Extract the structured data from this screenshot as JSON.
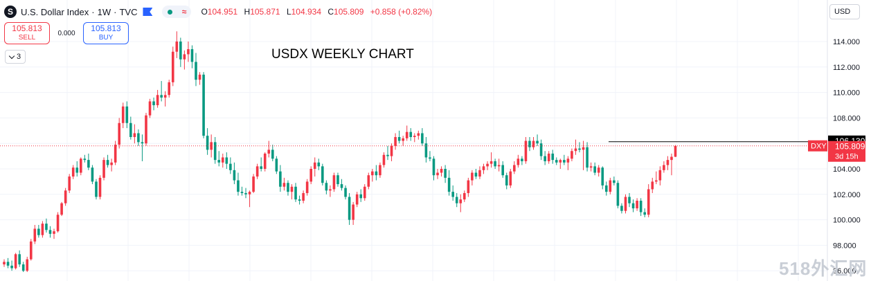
{
  "header": {
    "symbol_icon": "S",
    "symbol": "U.S. Dollar Index",
    "interval": "1W",
    "source": "TVC",
    "sep": "·",
    "ohlc": {
      "o_label": "O",
      "o": "104.951",
      "h_label": "H",
      "h": "105.871",
      "l_label": "L",
      "l": "104.934",
      "c_label": "C",
      "c": "105.809",
      "change": "+0.858 (+0.82%)"
    }
  },
  "trade": {
    "sell_price": "105.813",
    "sell_label": "SELL",
    "spread": "0.000",
    "buy_price": "105.813",
    "buy_label": "BUY"
  },
  "indicators_count": "3",
  "currency": "USD",
  "annotation": "USDX WEEKLY CHART",
  "watermark": "518外汇网",
  "colors": {
    "up": "#f23645",
    "down": "#089981",
    "accent": "#2962ff",
    "text": "#131722",
    "grid": "#f0f3fa"
  },
  "chart_data": {
    "type": "candlestick",
    "y_range": [
      96.6,
      115.9
    ],
    "y_ticks": [
      "114.000",
      "112.000",
      "110.000",
      "108.000",
      "106.000",
      "104.000",
      "102.000",
      "100.000",
      "98.000",
      "96.000"
    ],
    "last_price_label": "105.809",
    "last_price": 105.809,
    "countdown": "3d 15h",
    "ticker_tag": "DXY",
    "hline_label": "106.130",
    "hline_value": 106.13,
    "ohlc": [
      [
        96.5,
        96.9,
        96.3,
        96.7
      ],
      [
        96.7,
        97.0,
        96.2,
        96.4
      ],
      [
        96.4,
        96.8,
        96.0,
        96.2
      ],
      [
        96.2,
        97.4,
        96.1,
        97.3
      ],
      [
        97.3,
        97.6,
        96.3,
        96.5
      ],
      [
        96.5,
        96.7,
        95.9,
        96.0
      ],
      [
        96.0,
        97.1,
        95.9,
        96.9
      ],
      [
        96.9,
        98.5,
        96.8,
        98.3
      ],
      [
        98.3,
        99.6,
        98.1,
        99.3
      ],
      [
        99.3,
        99.6,
        98.6,
        98.8
      ],
      [
        98.8,
        99.9,
        98.6,
        99.7
      ],
      [
        99.7,
        100.1,
        99.0,
        99.2
      ],
      [
        99.2,
        99.5,
        98.6,
        98.9
      ],
      [
        98.9,
        99.3,
        98.5,
        99.1
      ],
      [
        99.1,
        100.6,
        99.0,
        100.4
      ],
      [
        100.4,
        101.4,
        100.3,
        101.3
      ],
      [
        101.3,
        102.5,
        101.1,
        102.3
      ],
      [
        102.3,
        103.6,
        102.1,
        103.4
      ],
      [
        103.4,
        104.3,
        103.2,
        104.1
      ],
      [
        104.1,
        104.6,
        103.4,
        103.7
      ],
      [
        103.7,
        104.9,
        103.5,
        104.8
      ],
      [
        104.8,
        105.1,
        104.5,
        104.7
      ],
      [
        104.7,
        105.2,
        103.9,
        104.1
      ],
      [
        104.1,
        104.3,
        102.8,
        103.0
      ],
      [
        103.0,
        103.2,
        101.6,
        101.8
      ],
      [
        101.8,
        103.5,
        101.6,
        103.3
      ],
      [
        103.3,
        104.9,
        103.1,
        104.7
      ],
      [
        104.7,
        105.1,
        104.1,
        104.3
      ],
      [
        104.3,
        104.8,
        103.8,
        104.5
      ],
      [
        104.5,
        106.2,
        104.3,
        105.9
      ],
      [
        105.9,
        108.0,
        105.6,
        107.6
      ],
      [
        107.6,
        109.2,
        107.2,
        108.9
      ],
      [
        108.9,
        109.3,
        107.2,
        107.6
      ],
      [
        107.6,
        108.1,
        106.3,
        106.5
      ],
      [
        106.5,
        107.5,
        106.0,
        106.8
      ],
      [
        106.8,
        107.1,
        105.8,
        106.1
      ],
      [
        106.1,
        106.7,
        104.6,
        106.0
      ],
      [
        106.0,
        108.4,
        105.8,
        108.2
      ],
      [
        108.2,
        109.5,
        108.0,
        109.3
      ],
      [
        109.3,
        109.6,
        108.6,
        109.0
      ],
      [
        109.0,
        110.2,
        108.8,
        109.8
      ],
      [
        109.8,
        110.9,
        109.3,
        109.6
      ],
      [
        109.6,
        110.1,
        108.9,
        109.8
      ],
      [
        109.8,
        111.0,
        109.6,
        110.8
      ],
      [
        110.8,
        113.6,
        110.5,
        113.2
      ],
      [
        113.2,
        114.8,
        112.7,
        114.0
      ],
      [
        114.0,
        114.3,
        112.0,
        112.6
      ],
      [
        112.6,
        113.3,
        111.8,
        113.0
      ],
      [
        113.0,
        114.0,
        112.4,
        113.4
      ],
      [
        113.4,
        113.7,
        111.9,
        112.4
      ],
      [
        112.4,
        113.1,
        110.5,
        111.0
      ],
      [
        111.0,
        111.6,
        110.6,
        111.4
      ],
      [
        111.4,
        111.6,
        106.4,
        106.6
      ],
      [
        106.6,
        107.2,
        105.1,
        105.5
      ],
      [
        105.5,
        106.7,
        104.9,
        106.1
      ],
      [
        106.1,
        106.5,
        104.4,
        104.7
      ],
      [
        104.7,
        105.4,
        104.2,
        104.5
      ],
      [
        104.5,
        105.2,
        104.1,
        104.9
      ],
      [
        104.9,
        105.3,
        104.0,
        104.4
      ],
      [
        104.4,
        104.9,
        103.6,
        103.9
      ],
      [
        103.9,
        104.5,
        102.8,
        103.1
      ],
      [
        103.1,
        103.7,
        101.9,
        102.2
      ],
      [
        102.2,
        102.6,
        101.9,
        102.1
      ],
      [
        102.1,
        102.5,
        101.7,
        102.0
      ],
      [
        102.0,
        102.3,
        101.0,
        102.2
      ],
      [
        102.2,
        103.6,
        102.1,
        103.4
      ],
      [
        103.4,
        104.4,
        103.2,
        104.2
      ],
      [
        104.2,
        104.9,
        103.8,
        104.0
      ],
      [
        104.0,
        105.3,
        103.8,
        105.2
      ],
      [
        105.2,
        106.2,
        104.9,
        105.5
      ],
      [
        105.5,
        105.9,
        104.6,
        104.8
      ],
      [
        104.8,
        105.0,
        103.6,
        103.8
      ],
      [
        103.8,
        104.3,
        102.2,
        102.6
      ],
      [
        102.6,
        103.3,
        102.3,
        102.9
      ],
      [
        102.9,
        103.1,
        101.9,
        102.2
      ],
      [
        102.2,
        102.8,
        101.6,
        102.6
      ],
      [
        102.6,
        102.9,
        101.4,
        101.6
      ],
      [
        101.6,
        101.9,
        101.2,
        101.5
      ],
      [
        101.5,
        102.3,
        101.3,
        102.1
      ],
      [
        102.1,
        103.2,
        101.9,
        103.0
      ],
      [
        103.0,
        104.2,
        102.8,
        104.0
      ],
      [
        104.0,
        104.9,
        103.4,
        104.5
      ],
      [
        104.5,
        104.8,
        103.9,
        104.2
      ],
      [
        104.2,
        104.4,
        102.7,
        102.9
      ],
      [
        102.9,
        103.1,
        102.0,
        102.3
      ],
      [
        102.3,
        102.7,
        101.8,
        102.4
      ],
      [
        102.4,
        103.7,
        102.2,
        103.5
      ],
      [
        103.5,
        103.7,
        102.6,
        102.8
      ],
      [
        102.8,
        103.2,
        102.3,
        102.5
      ],
      [
        102.5,
        102.7,
        101.6,
        101.8
      ],
      [
        101.8,
        102.1,
        99.6,
        100.0
      ],
      [
        100.0,
        101.4,
        99.6,
        101.2
      ],
      [
        101.2,
        102.2,
        101.0,
        102.0
      ],
      [
        102.0,
        102.4,
        101.4,
        101.7
      ],
      [
        101.7,
        102.8,
        101.5,
        102.6
      ],
      [
        102.6,
        103.7,
        102.4,
        103.5
      ],
      [
        103.5,
        104.0,
        103.0,
        103.8
      ],
      [
        103.8,
        104.3,
        103.1,
        103.5
      ],
      [
        103.5,
        104.5,
        103.3,
        104.3
      ],
      [
        104.3,
        105.3,
        104.1,
        105.1
      ],
      [
        105.1,
        105.8,
        104.7,
        105.0
      ],
      [
        105.0,
        106.0,
        104.6,
        105.8
      ],
      [
        105.8,
        106.8,
        105.5,
        106.5
      ],
      [
        106.5,
        107.0,
        106.0,
        106.2
      ],
      [
        106.2,
        106.6,
        105.8,
        106.4
      ],
      [
        106.4,
        107.4,
        106.2,
        106.9
      ],
      [
        106.9,
        107.2,
        106.2,
        106.5
      ],
      [
        106.5,
        106.8,
        106.1,
        106.6
      ],
      [
        106.6,
        107.0,
        106.3,
        106.8
      ],
      [
        106.8,
        107.2,
        105.8,
        106.0
      ],
      [
        106.0,
        106.5,
        104.5,
        104.9
      ],
      [
        104.9,
        105.4,
        104.6,
        104.8
      ],
      [
        104.8,
        105.0,
        103.1,
        103.5
      ],
      [
        103.5,
        104.0,
        103.2,
        103.7
      ],
      [
        103.7,
        104.2,
        103.4,
        104.0
      ],
      [
        104.0,
        104.3,
        102.9,
        103.3
      ],
      [
        103.3,
        103.9,
        101.9,
        102.2
      ],
      [
        102.2,
        102.7,
        101.5,
        101.8
      ],
      [
        101.8,
        102.1,
        101.0,
        101.3
      ],
      [
        101.3,
        102.0,
        100.6,
        101.6
      ],
      [
        101.6,
        102.3,
        101.4,
        102.1
      ],
      [
        102.1,
        103.3,
        101.8,
        103.1
      ],
      [
        103.1,
        103.9,
        102.7,
        103.7
      ],
      [
        103.7,
        104.0,
        103.2,
        103.4
      ],
      [
        103.4,
        104.2,
        103.2,
        103.9
      ],
      [
        103.9,
        104.4,
        103.6,
        104.2
      ],
      [
        104.2,
        104.6,
        103.9,
        104.4
      ],
      [
        104.4,
        105.3,
        104.1,
        104.6
      ],
      [
        104.6,
        104.8,
        104.0,
        104.2
      ],
      [
        104.2,
        104.8,
        103.8,
        104.3
      ],
      [
        104.3,
        104.6,
        103.3,
        103.5
      ],
      [
        103.5,
        103.7,
        102.4,
        102.7
      ],
      [
        102.7,
        104.0,
        102.5,
        103.8
      ],
      [
        103.8,
        104.6,
        103.6,
        104.3
      ],
      [
        104.3,
        105.1,
        104.1,
        104.8
      ],
      [
        104.8,
        105.0,
        104.3,
        104.6
      ],
      [
        104.6,
        106.5,
        104.4,
        106.2
      ],
      [
        106.2,
        106.5,
        105.4,
        105.7
      ],
      [
        105.7,
        106.5,
        105.5,
        106.2
      ],
      [
        106.2,
        106.7,
        105.8,
        106.0
      ],
      [
        106.0,
        106.3,
        104.7,
        105.0
      ],
      [
        105.0,
        105.4,
        104.3,
        104.6
      ],
      [
        104.6,
        105.4,
        104.4,
        105.2
      ],
      [
        105.2,
        105.5,
        104.4,
        104.7
      ],
      [
        104.7,
        104.9,
        104.3,
        104.5
      ],
      [
        104.5,
        104.8,
        104.0,
        104.7
      ],
      [
        104.7,
        105.1,
        104.3,
        104.5
      ],
      [
        104.5,
        105.0,
        103.9,
        104.8
      ],
      [
        104.8,
        105.6,
        104.6,
        105.4
      ],
      [
        105.4,
        106.3,
        105.1,
        105.6
      ],
      [
        105.6,
        106.1,
        105.3,
        105.5
      ],
      [
        105.5,
        106.2,
        103.9,
        105.7
      ],
      [
        105.7,
        106.1,
        103.8,
        104.1
      ],
      [
        104.1,
        104.5,
        103.8,
        104.2
      ],
      [
        104.2,
        104.5,
        103.5,
        103.7
      ],
      [
        103.7,
        104.3,
        103.4,
        104.1
      ],
      [
        104.1,
        104.2,
        102.4,
        102.7
      ],
      [
        102.7,
        103.0,
        101.9,
        102.2
      ],
      [
        102.2,
        103.3,
        102.0,
        103.1
      ],
      [
        103.1,
        103.4,
        102.7,
        102.9
      ],
      [
        102.9,
        103.1,
        100.9,
        101.1
      ],
      [
        101.1,
        101.3,
        100.5,
        100.7
      ],
      [
        100.7,
        102.0,
        100.5,
        101.8
      ],
      [
        101.8,
        102.1,
        101.0,
        101.3
      ],
      [
        101.3,
        101.6,
        100.6,
        100.9
      ],
      [
        100.9,
        101.7,
        100.7,
        101.5
      ],
      [
        101.5,
        101.7,
        100.3,
        100.6
      ],
      [
        100.6,
        100.9,
        100.2,
        100.4
      ],
      [
        100.4,
        102.8,
        100.2,
        102.4
      ],
      [
        102.4,
        103.3,
        102.1,
        103.0
      ],
      [
        103.0,
        103.8,
        102.8,
        103.1
      ],
      [
        103.1,
        104.2,
        102.7,
        103.9
      ],
      [
        103.9,
        104.6,
        103.7,
        104.3
      ],
      [
        104.3,
        105.0,
        103.9,
        104.7
      ],
      [
        104.7,
        105.2,
        103.5,
        104.95
      ],
      [
        104.951,
        105.871,
        104.934,
        105.809
      ]
    ]
  }
}
